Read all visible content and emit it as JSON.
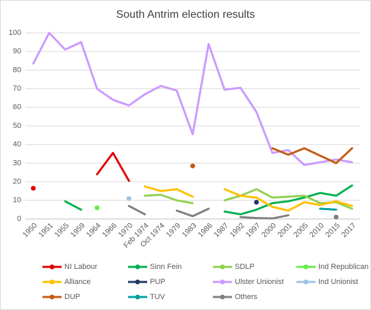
{
  "chart_data": {
    "type": "line",
    "title": "South Antrim election results",
    "categories": [
      "1950",
      "1951",
      "1955",
      "1959",
      "1964",
      "1966",
      "1970",
      "Feb 1974",
      "Oct 1974",
      "1979",
      "1983",
      "1986",
      "1987",
      "1992",
      "1997",
      "2000",
      "2001",
      "2005",
      "2010",
      "2015",
      "2017"
    ],
    "ylim": [
      0,
      100
    ],
    "yticks": [
      0,
      10,
      20,
      30,
      40,
      50,
      60,
      70,
      80,
      90,
      100
    ],
    "grid": true,
    "legend": "bottom",
    "series": [
      {
        "name": "NI Labour",
        "color": "#e00000",
        "values": [
          16.5,
          null,
          null,
          null,
          24,
          35.5,
          20.5,
          null,
          null,
          null,
          null,
          null,
          null,
          null,
          null,
          null,
          null,
          null,
          null,
          null,
          null
        ]
      },
      {
        "name": "Sinn Fein",
        "color": "#00b050",
        "values": [
          null,
          null,
          9.5,
          5,
          null,
          null,
          null,
          null,
          null,
          null,
          null,
          null,
          4,
          2.5,
          5,
          8.5,
          9.5,
          11.5,
          14,
          12.5,
          18
        ]
      },
      {
        "name": "SDLP",
        "color": "#92d050",
        "values": [
          null,
          null,
          null,
          null,
          null,
          null,
          null,
          12.5,
          13,
          10,
          8.5,
          null,
          10,
          12.5,
          16,
          11.5,
          12,
          12.5,
          8.5,
          9,
          5.5
        ]
      },
      {
        "name": "Ind Republican",
        "color": "#66ee44",
        "values": [
          null,
          null,
          null,
          null,
          6,
          null,
          null,
          null,
          null,
          null,
          null,
          null,
          null,
          null,
          null,
          null,
          null,
          null,
          null,
          null,
          null
        ]
      },
      {
        "name": "Alliance",
        "color": "#ffc000",
        "values": [
          null,
          null,
          null,
          null,
          null,
          null,
          null,
          17.5,
          15,
          16,
          12,
          null,
          16,
          12.5,
          11.5,
          6.5,
          4.5,
          9,
          7.5,
          9.5,
          7
        ]
      },
      {
        "name": "PUP",
        "color": "#1f3864",
        "values": [
          null,
          null,
          null,
          null,
          null,
          null,
          null,
          null,
          null,
          null,
          null,
          null,
          null,
          null,
          9,
          null,
          null,
          null,
          null,
          null,
          null
        ]
      },
      {
        "name": "Ulster Unionist",
        "color": "#cc99ff",
        "values": [
          83.5,
          100,
          91,
          95,
          70,
          64,
          61,
          67,
          71.5,
          69,
          45.5,
          94,
          69.5,
          70.5,
          57.5,
          35.5,
          37,
          29,
          30.5,
          32,
          30.5
        ]
      },
      {
        "name": "Ind Unionist",
        "color": "#9dc3e6",
        "values": [
          null,
          null,
          null,
          null,
          null,
          null,
          11,
          null,
          null,
          null,
          null,
          null,
          null,
          null,
          null,
          null,
          null,
          null,
          null,
          null,
          null
        ]
      },
      {
        "name": "DUP",
        "color": "#c55a11",
        "values": [
          null,
          null,
          null,
          null,
          null,
          null,
          null,
          null,
          null,
          null,
          28.5,
          null,
          null,
          null,
          null,
          38,
          34.5,
          38,
          34,
          30,
          38
        ]
      },
      {
        "name": "TUV",
        "color": "#00a0a0",
        "values": [
          null,
          null,
          null,
          null,
          null,
          null,
          null,
          null,
          null,
          null,
          null,
          null,
          null,
          null,
          null,
          null,
          null,
          null,
          5.5,
          5,
          null
        ]
      },
      {
        "name": "Others",
        "color": "#7f7f7f",
        "values": [
          null,
          null,
          null,
          null,
          null,
          null,
          7,
          2.5,
          null,
          4.5,
          1.5,
          5.5,
          null,
          1,
          0.5,
          0.3,
          2,
          null,
          null,
          1,
          null
        ]
      }
    ]
  }
}
